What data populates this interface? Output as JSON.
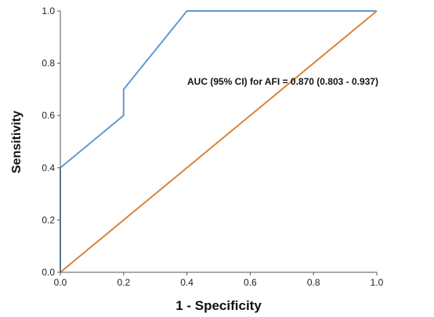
{
  "chart_data": {
    "type": "line",
    "title": "",
    "xlabel": "1 - Specificity",
    "ylabel": "Sensitivity",
    "xlim": [
      0.0,
      1.0
    ],
    "ylim": [
      0.0,
      1.0
    ],
    "xticks": [
      "0.0",
      "0.2",
      "0.4",
      "0.6",
      "0.8",
      "1.0"
    ],
    "yticks": [
      "0.0",
      "0.2",
      "0.4",
      "0.6",
      "0.8",
      "1.0"
    ],
    "grid": false,
    "legend": "none",
    "annotation": "AUC (95% CI) for AFI = 0.870 (0.803 - 0.937)",
    "series": [
      {
        "color": "#5b9bd5",
        "x": [
          0.0,
          0.0,
          0.2,
          0.2,
          0.4,
          1.0
        ],
        "y": [
          0.0,
          0.4,
          0.6,
          0.7,
          1.0,
          1.0
        ]
      },
      {
        "color": "#d9843b",
        "x": [
          0.0,
          1.0
        ],
        "y": [
          0.0,
          1.0
        ]
      }
    ]
  }
}
